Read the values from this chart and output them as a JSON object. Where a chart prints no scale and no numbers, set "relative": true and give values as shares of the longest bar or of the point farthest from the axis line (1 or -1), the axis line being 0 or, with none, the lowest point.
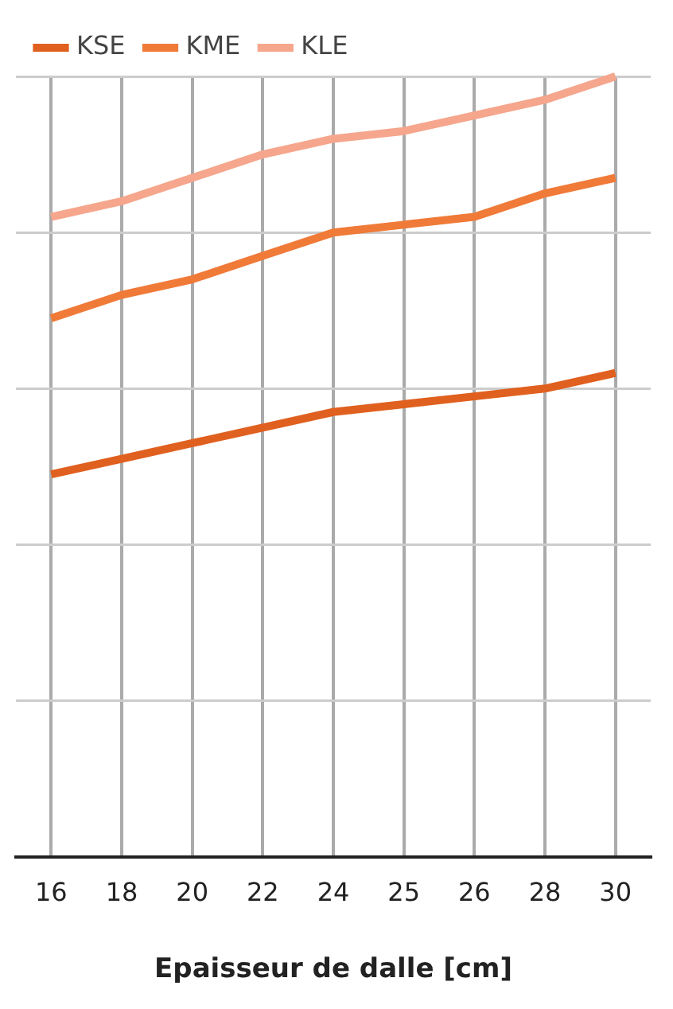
{
  "chart_data": {
    "type": "line",
    "xlabel": "Epaisseur de dalle [cm]",
    "categories": [
      "16",
      "18",
      "20",
      "22",
      "24",
      "25",
      "26",
      "28",
      "30"
    ],
    "relative": true,
    "grid": true,
    "legend": "top left",
    "marker": "none",
    "line_style": "solid",
    "series": [
      {
        "name": "KSE",
        "color": "#e0601f",
        "values": [
          0.49,
          0.51,
          0.53,
          0.55,
          0.57,
          0.58,
          0.59,
          0.6,
          0.62
        ]
      },
      {
        "name": "KME",
        "color": "#f07a38",
        "values": [
          0.69,
          0.72,
          0.74,
          0.77,
          0.8,
          0.81,
          0.82,
          0.85,
          0.87
        ]
      },
      {
        "name": "KLE",
        "color": "#f5a68c",
        "values": [
          0.82,
          0.84,
          0.87,
          0.9,
          0.92,
          0.93,
          0.95,
          0.97,
          1
        ]
      }
    ]
  }
}
